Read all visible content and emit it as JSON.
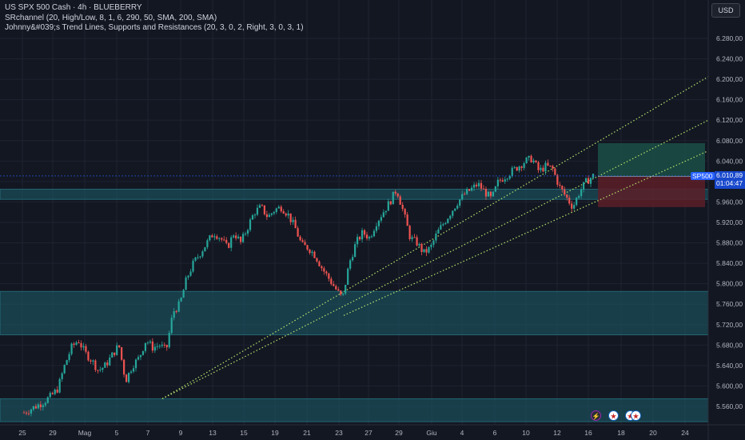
{
  "header": {
    "symbol_line": "US SPX 500 Cash · 4h · BLUEBERRY",
    "indicator_1": "SRchannel (20, High/Low, 8, 1, 6, 290, 50, SMA, 200, SMA)",
    "indicator_2": "Johnny&#039;s Trend Lines, Supports and Resistances (20, 3, 0, 2, Right, 3, 0, 3, 1)"
  },
  "toolbar": {
    "currency": "USD"
  },
  "price_axis": {
    "labels": [
      "6.280,00",
      "6.240,00",
      "6.200,00",
      "6.160,00",
      "6.120,00",
      "6.080,00",
      "6.040,00",
      "6.000,00",
      "5.960,00",
      "5.920,00",
      "5.880,00",
      "5.840,00",
      "5.800,00",
      "5.760,00",
      "5.720,00",
      "5.680,00",
      "5.640,00",
      "5.600,00",
      "5.560,00"
    ]
  },
  "time_axis": {
    "labels": [
      "25",
      "29",
      "Mag",
      "5",
      "7",
      "9",
      "13",
      "15",
      "19",
      "21",
      "23",
      "27",
      "29",
      "Giu",
      "4",
      "6",
      "10",
      "12",
      "16",
      "18",
      "20",
      "24"
    ]
  },
  "tags": {
    "symbol": "SP500",
    "last_price": "6.010,89",
    "countdown": "01:04:47"
  },
  "events": [
    {
      "icon": "lightning-icon",
      "glyph": "⚡"
    },
    {
      "icon": "us-flag-icon",
      "glyph": "★"
    },
    {
      "icon": "us-flag-icon",
      "glyph": "★"
    },
    {
      "icon": "us-flag-icon",
      "glyph": "★"
    }
  ],
  "colors": {
    "background": "#131722",
    "up": "#26a69a",
    "down": "#ef5350",
    "zone": "#1e5f6b",
    "trendline": "#b6e36b",
    "profit_box": "#1b4f45",
    "loss_box": "#5c1f28",
    "label_blue": "#2962ff"
  },
  "chart_data": {
    "type": "candlestick",
    "title": "US SPX 500 Cash · 4h · BLUEBERRY",
    "y_axis_ticks": [
      6280,
      6240,
      6200,
      6160,
      6120,
      6080,
      6040,
      6000,
      5960,
      5920,
      5880,
      5840,
      5800,
      5760,
      5720,
      5680,
      5640,
      5600,
      5560
    ],
    "x_axis_ticks": [
      "25",
      "29",
      "Mag",
      "5",
      "7",
      "9",
      "13",
      "15",
      "19",
      "21",
      "23",
      "27",
      "29",
      "Giu",
      "4",
      "6",
      "10",
      "12",
      "16",
      "18",
      "20",
      "24"
    ],
    "ylim": [
      5540,
      6330
    ],
    "close_path": [
      5548,
      5555,
      5562,
      5570,
      5580,
      5595,
      5640,
      5675,
      5690,
      5665,
      5650,
      5630,
      5640,
      5660,
      5680,
      5610,
      5640,
      5655,
      5690,
      5675,
      5680,
      5670,
      5745,
      5760,
      5810,
      5840,
      5860,
      5880,
      5900,
      5890,
      5870,
      5900,
      5880,
      5910,
      5940,
      5950,
      5930,
      5945,
      5950,
      5935,
      5910,
      5875,
      5870,
      5855,
      5830,
      5810,
      5790,
      5770,
      5840,
      5880,
      5900,
      5890,
      5920,
      5940,
      5960,
      5985,
      5940,
      5890,
      5880,
      5860,
      5870,
      5900,
      5920,
      5940,
      5960,
      5975,
      5985,
      5995,
      5980,
      5965,
      6000,
      6010,
      6020,
      6030,
      6040,
      6045,
      6020,
      6030,
      6025,
      5990,
      5970,
      5950,
      5980,
      6000,
      6011
    ],
    "horizontal_zones": [
      [
        5965,
        5985
      ],
      [
        5700,
        5785
      ],
      [
        5530,
        5575
      ]
    ],
    "last_price": 6010.89,
    "grid": true,
    "legend": "none"
  }
}
